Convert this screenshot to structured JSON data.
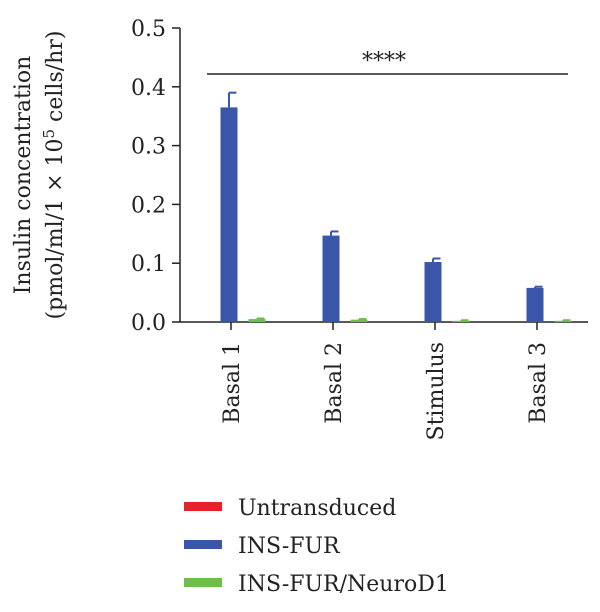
{
  "chart_data": {
    "type": "bar",
    "categories": [
      "Basal 1",
      "Basal 2",
      "Stimulus",
      "Basal 3"
    ],
    "series": [
      {
        "name": "Untransduced",
        "color": "#e8202a",
        "values": [
          0,
          0,
          0,
          0
        ],
        "errors": [
          0,
          0,
          0,
          0
        ]
      },
      {
        "name": "INS-FUR",
        "color": "#3a56a8",
        "values": [
          0.365,
          0.147,
          0.102,
          0.058
        ],
        "errors": [
          0.025,
          0.007,
          0.006,
          0.002
        ]
      },
      {
        "name": "INS-FUR/NeuroD1",
        "color": "#6cc04a",
        "values": [
          0.005,
          0.004,
          0.002,
          0.002
        ],
        "errors": [
          0.001,
          0.001,
          0.001,
          0.001
        ]
      }
    ],
    "ylabel_line1": "Insulin concentration",
    "ylabel_line2_prefix": "(pmol/ml/1 × 10",
    "ylabel_line2_sup": "5",
    "ylabel_line2_suffix": " cells/hr)",
    "ylim": [
      0,
      0.5
    ],
    "yticks": [
      "0.0",
      "0.1",
      "0.2",
      "0.3",
      "0.4",
      "0.5"
    ],
    "significance": "****",
    "legend_position": "bottom"
  }
}
